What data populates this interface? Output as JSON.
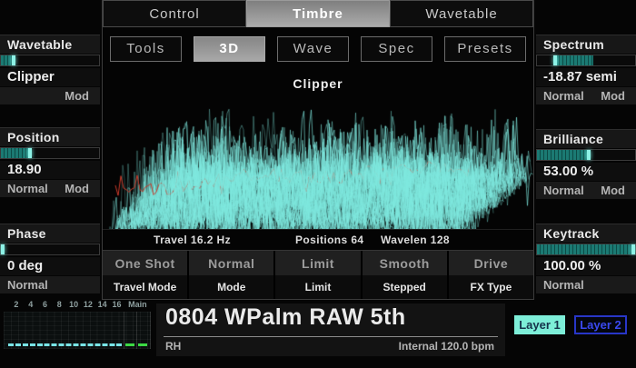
{
  "tabs": {
    "items": [
      "Control",
      "Timbre",
      "Wavetable"
    ],
    "active": "Timbre"
  },
  "toolbar": {
    "items": [
      "Tools",
      "3D",
      "Wave",
      "Spec",
      "Presets"
    ],
    "active": "3D"
  },
  "left_sidebar": {
    "wavetable": {
      "label": "Wavetable",
      "value": "Clipper",
      "mod_label": "Mod",
      "slider_percent": 13
    },
    "position": {
      "label": "Position",
      "value": "18.90",
      "normal_label": "Normal",
      "mod_label": "Mod",
      "slider_percent": 30
    },
    "phase": {
      "label": "Phase",
      "value": "0 deg",
      "normal_label": "Normal",
      "slider_percent": 0
    }
  },
  "right_sidebar": {
    "spectrum": {
      "label": "Spectrum",
      "value": "-18.87 semi",
      "normal_label": "Normal",
      "mod_label": "Mod",
      "slider_fill_start": 19,
      "slider_fill_end": 57
    },
    "brilliance": {
      "label": "Brilliance",
      "value": "53.00 %",
      "normal_label": "Normal",
      "mod_label": "Mod",
      "slider_percent": 53
    },
    "keytrack": {
      "label": "Keytrack",
      "value": "100.00 %",
      "normal_label": "Normal",
      "slider_percent": 100
    }
  },
  "viz": {
    "title": "Clipper",
    "travel": "Travel 16.2 Hz",
    "positions": "Positions 64",
    "wavelen": "Wavelen 128",
    "seed": 7,
    "trace_count": 54,
    "trace_color_rgb": "127,233,223",
    "red_trace_color": "#c93a2a"
  },
  "param_grid": [
    {
      "value": "One Shot",
      "label": "Travel Mode"
    },
    {
      "value": "Normal",
      "label": "Mode"
    },
    {
      "value": "Limit",
      "label": "Limit"
    },
    {
      "value": "Smooth",
      "label": "Stepped"
    },
    {
      "value": "Drive",
      "label": "FX Type"
    }
  ],
  "bottom_bar": {
    "meter_numbers": [
      "2",
      "4",
      "6",
      "8",
      "10",
      "12",
      "14",
      "16",
      "Main"
    ],
    "patch_name": "0804 WPalm RAW 5th",
    "patch_sub_left": "RH",
    "patch_sub_right": "Internal 120.0 bpm",
    "layer1": "Layer 1",
    "layer2": "Layer 2",
    "voice_dash_color": "#78e4e6",
    "main_dash_color": "#3cd944"
  }
}
